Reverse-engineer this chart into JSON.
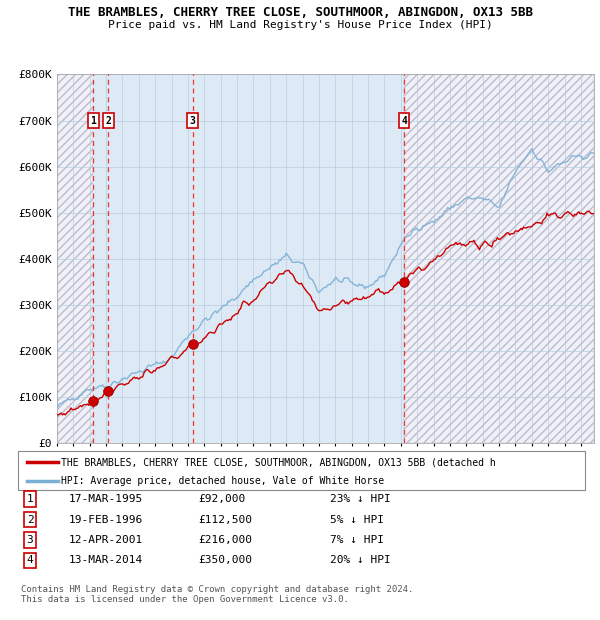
{
  "title": "THE BRAMBLES, CHERRY TREE CLOSE, SOUTHMOOR, ABINGDON, OX13 5BB",
  "subtitle": "Price paid vs. HM Land Registry's House Price Index (HPI)",
  "footer1": "Contains HM Land Registry data © Crown copyright and database right 2024.",
  "footer2": "This data is licensed under the Open Government Licence v3.0.",
  "legend_line1": "THE BRAMBLES, CHERRY TREE CLOSE, SOUTHMOOR, ABINGDON, OX13 5BB (detached h",
  "legend_line2": "HPI: Average price, detached house, Vale of White Horse",
  "sale_dates": [
    "17-MAR-1995",
    "19-FEB-1996",
    "12-APR-2001",
    "13-MAR-2014"
  ],
  "sale_prices": [
    92000,
    112500,
    216000,
    350000
  ],
  "sale_date_numeric": [
    1995.21,
    1996.13,
    2001.28,
    2014.2
  ],
  "hpi_color": "#7bafd4",
  "price_color": "#cc0000",
  "marker_color": "#cc0000",
  "ylim": [
    0,
    800000
  ],
  "yticks": [
    0,
    100000,
    200000,
    300000,
    400000,
    500000,
    600000,
    700000,
    800000
  ],
  "ytick_labels": [
    "£0",
    "£100K",
    "£200K",
    "£300K",
    "£400K",
    "£500K",
    "£600K",
    "£700K",
    "£800K"
  ],
  "xmin": 1993.0,
  "xmax": 2025.8,
  "hpi_ctrl_years": [
    1993,
    1995,
    1996,
    1998,
    2000,
    2001,
    2002,
    2003,
    2004,
    2005,
    2006,
    2007,
    2008,
    2009,
    2010,
    2011,
    2012,
    2013,
    2014,
    2015,
    2016,
    2017,
    2018,
    2019,
    2020,
    2021,
    2022,
    2023,
    2024,
    2025.3
  ],
  "hpi_ctrl_vals": [
    78000,
    120000,
    125000,
    155000,
    185000,
    235000,
    265000,
    290000,
    320000,
    355000,
    380000,
    405000,
    385000,
    330000,
    355000,
    345000,
    340000,
    365000,
    430000,
    470000,
    480000,
    510000,
    530000,
    530000,
    510000,
    590000,
    640000,
    590000,
    610000,
    625000
  ],
  "price_ctrl_years": [
    1993,
    1995.21,
    1996.13,
    1997,
    1999,
    2001.28,
    2003,
    2005,
    2007,
    2008,
    2009,
    2011,
    2013,
    2014.2,
    2015,
    2017,
    2019,
    2021,
    2023,
    2025.3
  ],
  "price_ctrl_vals": [
    60000,
    92000,
    112500,
    130000,
    155000,
    216000,
    255000,
    315000,
    370000,
    345000,
    290000,
    310000,
    330000,
    350000,
    370000,
    430000,
    430000,
    460000,
    490000,
    500000
  ]
}
